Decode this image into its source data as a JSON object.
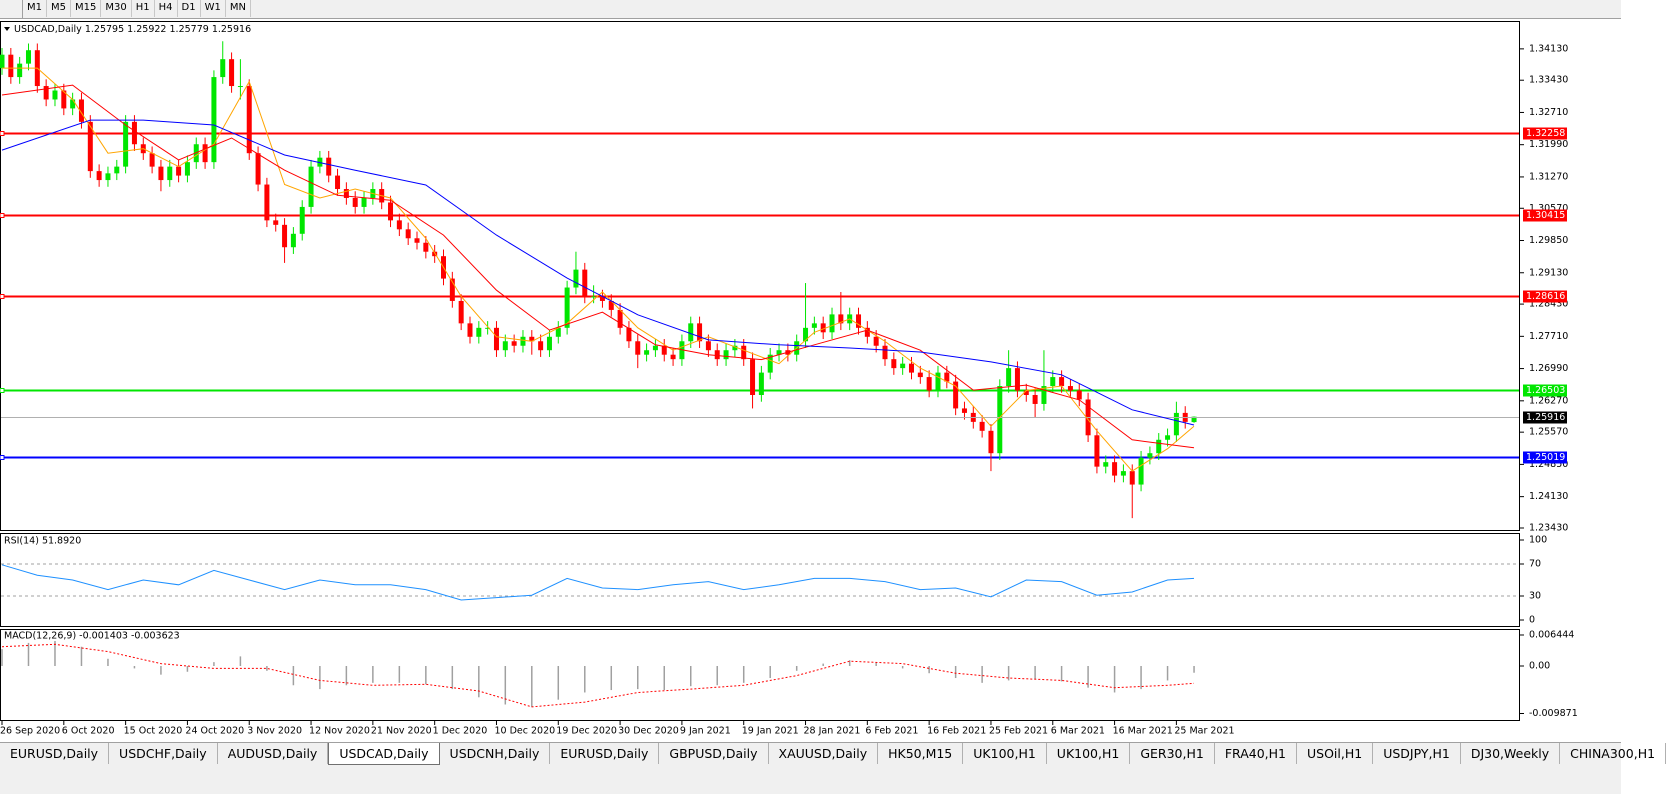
{
  "toolbar": {
    "timeframes": [
      "M1",
      "M5",
      "M15",
      "M30",
      "H1",
      "H4",
      "D1",
      "W1",
      "MN"
    ]
  },
  "tabs": {
    "items": [
      "EURUSD,Daily",
      "USDCHF,Daily",
      "AUDUSD,Daily",
      "USDCAD,Daily",
      "USDCNH,Daily",
      "EURUSD,Daily",
      "GBPUSD,Daily",
      "XAUUSD,Daily",
      "HK50,M15",
      "UK100,H1",
      "UK100,H1",
      "GER30,H1",
      "FRA40,H1",
      "USOil,H1",
      "USDJPY,H1",
      "DJ30,Weekly",
      "CHINA300,H1"
    ],
    "active": 3
  },
  "chart_data": {
    "type": "candlestick",
    "symbol": "USDCAD,Daily",
    "up_color": "#00e600",
    "down_color": "#ff0000",
    "categories": [
      "26 Sep 2020",
      null,
      null,
      null,
      null,
      null,
      null,
      "6 Oct 2020",
      null,
      null,
      null,
      null,
      null,
      null,
      "15 Oct 2020",
      null,
      null,
      null,
      null,
      null,
      null,
      "24 Oct 2020",
      null,
      null,
      null,
      null,
      null,
      null,
      "3 Nov 2020",
      null,
      null,
      null,
      null,
      null,
      null,
      "12 Nov 2020",
      null,
      null,
      null,
      null,
      null,
      null,
      "21 Nov 2020",
      null,
      null,
      null,
      null,
      null,
      null,
      "1 Dec 2020",
      null,
      null,
      null,
      null,
      null,
      null,
      "10 Dec 2020",
      null,
      null,
      null,
      null,
      null,
      null,
      "19 Dec 2020",
      null,
      null,
      null,
      null,
      null,
      null,
      "30 Dec 2020",
      null,
      null,
      null,
      null,
      null,
      null,
      "9 Jan 2021",
      null,
      null,
      null,
      null,
      null,
      null,
      "19 Jan 2021",
      null,
      null,
      null,
      null,
      null,
      null,
      "28 Jan 2021",
      null,
      null,
      null,
      null,
      null,
      null,
      "6 Feb 2021",
      null,
      null,
      null,
      null,
      null,
      null,
      "16 Feb 2021",
      null,
      null,
      null,
      null,
      null,
      null,
      "25 Feb 2021",
      null,
      null,
      null,
      null,
      null,
      null,
      "6 Mar 2021",
      null,
      null,
      null,
      null,
      null,
      null,
      "16 Mar 2021",
      null,
      null,
      null,
      null,
      null,
      null,
      "25 Mar 2021",
      null,
      null
    ],
    "open": [
      1.337,
      1.34,
      1.335,
      1.338,
      1.341,
      1.333,
      1.33,
      1.332,
      1.328,
      1.33,
      1.325,
      1.314,
      1.312,
      1.3135,
      1.315,
      1.325,
      1.32,
      1.318,
      1.315,
      1.312,
      1.315,
      1.313,
      1.316,
      1.32,
      1.316,
      1.335,
      1.339,
      1.333,
      1.333,
      1.318,
      1.311,
      1.303,
      1.302,
      1.297,
      1.3,
      1.306,
      1.315,
      1.317,
      1.313,
      1.31,
      1.308,
      1.306,
      1.308,
      1.31,
      1.307,
      1.303,
      1.301,
      1.299,
      1.298,
      1.296,
      1.295,
      1.29,
      1.285,
      1.28,
      1.277,
      1.279,
      1.279,
      1.274,
      1.276,
      1.275,
      1.277,
      1.276,
      1.274,
      1.277,
      1.279,
      1.288,
      1.292,
      1.286,
      1.286,
      1.285,
      1.283,
      1.279,
      1.276,
      1.273,
      1.274,
      1.275,
      1.273,
      1.272,
      1.276,
      1.28,
      1.276,
      1.274,
      1.272,
      1.274,
      1.275,
      1.272,
      1.264,
      1.269,
      1.273,
      1.274,
      1.273,
      1.276,
      1.279,
      1.28,
      1.278,
      1.282,
      1.28,
      1.282,
      1.279,
      1.277,
      1.275,
      1.272,
      1.27,
      1.271,
      1.269,
      1.268,
      1.265,
      1.269,
      1.267,
      1.261,
      1.26,
      1.258,
      1.256,
      1.251,
      1.266,
      1.27,
      1.265,
      1.264,
      1.262,
      1.266,
      1.268,
      1.266,
      1.265,
      1.263,
      1.255,
      1.248,
      1.249,
      1.246,
      1.247,
      1.244,
      1.25,
      1.251,
      1.254,
      1.255,
      1.26,
      1.25795
    ],
    "high": [
      1.3415,
      1.3415,
      1.3395,
      1.3425,
      1.3425,
      1.3345,
      1.3335,
      1.3335,
      1.3315,
      1.3315,
      1.3265,
      1.3155,
      1.315,
      1.3165,
      1.3265,
      1.3265,
      1.3215,
      1.3195,
      1.3165,
      1.3165,
      1.3165,
      1.3175,
      1.3215,
      1.3215,
      1.3365,
      1.343,
      1.3405,
      1.339,
      1.3345,
      1.3195,
      1.3125,
      1.3045,
      1.3035,
      1.3015,
      1.3075,
      1.3165,
      1.3185,
      1.3185,
      1.3145,
      1.3115,
      1.3095,
      1.3095,
      1.3115,
      1.3115,
      1.3085,
      1.3045,
      1.3025,
      1.3005,
      1.2995,
      1.2975,
      1.2965,
      1.2915,
      1.2865,
      1.2815,
      1.2805,
      1.2805,
      1.2805,
      1.2775,
      1.2775,
      1.2785,
      1.2785,
      1.2775,
      1.2785,
      1.2805,
      1.2895,
      1.296,
      1.2935,
      1.2885,
      1.2875,
      1.2865,
      1.2845,
      1.2805,
      1.2775,
      1.2755,
      1.2765,
      1.2765,
      1.2745,
      1.2775,
      1.2815,
      1.2815,
      1.2775,
      1.2755,
      1.2755,
      1.2765,
      1.2765,
      1.2735,
      1.2705,
      1.2745,
      1.2755,
      1.2755,
      1.2775,
      1.289,
      1.2815,
      1.2815,
      1.2835,
      1.287,
      1.2835,
      1.2835,
      1.2805,
      1.2785,
      1.2765,
      1.2735,
      1.2725,
      1.2725,
      1.2705,
      1.2695,
      1.2705,
      1.2705,
      1.2685,
      1.2625,
      1.2615,
      1.2595,
      1.2575,
      1.2675,
      1.274,
      1.2715,
      1.2665,
      1.2655,
      1.274,
      1.2695,
      1.2695,
      1.2675,
      1.2665,
      1.2645,
      1.2565,
      1.2505,
      1.2505,
      1.2485,
      1.2485,
      1.2515,
      1.2525,
      1.2555,
      1.2565,
      1.2625,
      1.2615,
      1.25922
    ],
    "low": [
      1.3355,
      1.3335,
      1.3335,
      1.3365,
      1.3315,
      1.3285,
      1.3285,
      1.3265,
      1.3265,
      1.3235,
      1.3125,
      1.3105,
      1.3105,
      1.312,
      1.3135,
      1.3185,
      1.3165,
      1.3135,
      1.3095,
      1.3105,
      1.3115,
      1.3115,
      1.3145,
      1.3145,
      1.3145,
      1.3335,
      1.3315,
      1.33,
      1.3165,
      1.3095,
      1.3015,
      1.3005,
      1.2935,
      1.2955,
      1.2985,
      1.3045,
      1.3135,
      1.3115,
      1.3085,
      1.3065,
      1.3045,
      1.3045,
      1.3065,
      1.3055,
      1.3015,
      1.2995,
      1.2975,
      1.2965,
      1.2945,
      1.2935,
      1.2885,
      1.2835,
      1.2785,
      1.2755,
      1.2755,
      1.2775,
      1.2725,
      1.2725,
      1.2735,
      1.2735,
      1.273,
      1.2725,
      1.2725,
      1.2755,
      1.2775,
      1.2865,
      1.2845,
      1.2845,
      1.2835,
      1.2815,
      1.2775,
      1.2745,
      1.27,
      1.2715,
      1.2725,
      1.2715,
      1.2705,
      1.2705,
      1.2745,
      1.2745,
      1.2725,
      1.2705,
      1.2705,
      1.2725,
      1.2705,
      1.261,
      1.2625,
      1.2675,
      1.2715,
      1.2715,
      1.2715,
      1.2745,
      1.2775,
      1.2765,
      1.2765,
      1.2785,
      1.2785,
      1.2775,
      1.2755,
      1.2735,
      1.2705,
      1.2685,
      1.2685,
      1.2675,
      1.2665,
      1.2635,
      1.2635,
      1.2655,
      1.2595,
      1.2585,
      1.2565,
      1.2545,
      1.247,
      1.2495,
      1.2645,
      1.2635,
      1.2625,
      1.259,
      1.2605,
      1.2645,
      1.2645,
      1.2635,
      1.2615,
      1.2535,
      1.2465,
      1.2465,
      1.2445,
      1.2445,
      1.2365,
      1.2425,
      1.2485,
      1.2495,
      1.2525,
      1.2535,
      1.2565,
      1.25779
    ],
    "close": [
      1.34,
      1.335,
      1.338,
      1.341,
      1.333,
      1.33,
      1.332,
      1.328,
      1.33,
      1.325,
      1.314,
      1.312,
      1.3135,
      1.315,
      1.325,
      1.32,
      1.318,
      1.315,
      1.312,
      1.315,
      1.313,
      1.316,
      1.32,
      1.316,
      1.335,
      1.339,
      1.333,
      1.333,
      1.318,
      1.311,
      1.303,
      1.302,
      1.297,
      1.3,
      1.306,
      1.315,
      1.317,
      1.313,
      1.31,
      1.308,
      1.306,
      1.308,
      1.31,
      1.307,
      1.303,
      1.301,
      1.299,
      1.298,
      1.296,
      1.295,
      1.29,
      1.285,
      1.28,
      1.277,
      1.279,
      1.279,
      1.274,
      1.276,
      1.275,
      1.277,
      1.276,
      1.274,
      1.277,
      1.279,
      1.288,
      1.292,
      1.286,
      1.286,
      1.285,
      1.283,
      1.279,
      1.276,
      1.273,
      1.274,
      1.275,
      1.273,
      1.272,
      1.276,
      1.28,
      1.276,
      1.274,
      1.272,
      1.274,
      1.275,
      1.272,
      1.264,
      1.269,
      1.273,
      1.274,
      1.273,
      1.276,
      1.279,
      1.28,
      1.278,
      1.282,
      1.28,
      1.282,
      1.279,
      1.277,
      1.275,
      1.272,
      1.27,
      1.271,
      1.269,
      1.268,
      1.265,
      1.269,
      1.267,
      1.261,
      1.26,
      1.258,
      1.256,
      1.251,
      1.266,
      1.27,
      1.265,
      1.264,
      1.262,
      1.266,
      1.268,
      1.266,
      1.265,
      1.263,
      1.255,
      1.248,
      1.249,
      1.246,
      1.247,
      1.244,
      1.25,
      1.251,
      1.254,
      1.255,
      1.26,
      1.258,
      1.25916
    ],
    "ylim": [
      1.23385,
      1.3473
    ],
    "yticks": [
      {
        "value": 1.3413,
        "label": "1.34130"
      },
      {
        "value": 1.3343,
        "label": "1.33430"
      },
      {
        "value": 1.3271,
        "label": "1.32710"
      },
      {
        "value": 1.3199,
        "label": "1.31990"
      },
      {
        "value": 1.3127,
        "label": "1.31270"
      },
      {
        "value": 1.3057,
        "label": "1.30570"
      },
      {
        "value": 1.2985,
        "label": "1.29850"
      },
      {
        "value": 1.2913,
        "label": "1.29130"
      },
      {
        "value": 1.2843,
        "label": "1.28430"
      },
      {
        "value": 1.2771,
        "label": "1.27710"
      },
      {
        "value": 1.2699,
        "label": "1.26990"
      },
      {
        "value": 1.2627,
        "label": "1.26270"
      },
      {
        "value": 1.2557,
        "label": "1.25570"
      },
      {
        "value": 1.2485,
        "label": "1.24850"
      },
      {
        "value": 1.2413,
        "label": "1.24130"
      },
      {
        "value": 1.2343,
        "label": "1.23430"
      }
    ],
    "levels": [
      {
        "value": 1.32258,
        "color": "#ff0000"
      },
      {
        "value": 1.30415,
        "color": "#ff0000"
      },
      {
        "value": 1.28616,
        "color": "#ff0000"
      },
      {
        "value": 1.26503,
        "color": "#00e600"
      },
      {
        "value": 1.25019,
        "color": "#0000ff"
      }
    ],
    "moving_averages": [
      {
        "color": "#ffa500",
        "x": [
          0,
          4,
          8,
          12,
          16,
          20,
          24,
          28,
          32,
          36,
          40,
          44,
          48,
          52,
          56,
          60,
          64,
          68,
          72,
          76,
          80,
          84,
          88,
          92,
          96,
          100,
          104,
          108,
          112,
          116,
          120,
          124,
          128,
          132,
          135
        ],
        "values": [
          1.337,
          1.337,
          1.33,
          1.318,
          1.319,
          1.315,
          1.32,
          1.334,
          1.311,
          1.308,
          1.31,
          1.308,
          1.299,
          1.286,
          1.277,
          1.276,
          1.28,
          1.287,
          1.279,
          1.274,
          1.277,
          1.274,
          1.271,
          1.278,
          1.281,
          1.276,
          1.27,
          1.266,
          1.257,
          1.265,
          1.266,
          1.256,
          1.247,
          1.252,
          1.257
        ]
      },
      {
        "color": "#ff0000",
        "x": [
          0,
          8,
          14,
          20,
          26,
          32,
          38,
          44,
          50,
          56,
          62,
          68,
          74,
          80,
          86,
          92,
          98,
          104,
          110,
          116,
          122,
          128,
          135
        ],
        "values": [
          1.331,
          1.3332,
          1.3243,
          1.3165,
          1.3214,
          1.3142,
          1.3086,
          1.3075,
          1.2997,
          1.2874,
          1.2785,
          1.2825,
          1.2752,
          1.273,
          1.2719,
          1.2752,
          1.2785,
          1.274,
          1.2651,
          1.2662,
          1.2629,
          1.254,
          1.2522
        ]
      },
      {
        "color": "#0000ff",
        "x": [
          0,
          10,
          16,
          24,
          32,
          40,
          48,
          56,
          64,
          72,
          80,
          88,
          96,
          104,
          112,
          120,
          128,
          135
        ],
        "values": [
          1.3187,
          1.3254,
          1.3254,
          1.3243,
          1.3176,
          1.3142,
          1.3109,
          1.2997,
          1.2901,
          1.2819,
          1.2763,
          1.2752,
          1.2745,
          1.2736,
          1.2714,
          1.2685,
          1.2607,
          1.2573
        ]
      }
    ],
    "rsi": {
      "label": "RSI(14) 51.8920",
      "color": "#1e90ff",
      "ylim": [
        0,
        100
      ],
      "yticks": [
        100,
        70,
        30,
        0
      ],
      "levels": [
        70,
        30
      ],
      "x": [
        0,
        4,
        8,
        12,
        16,
        20,
        24,
        28,
        32,
        36,
        40,
        44,
        48,
        52,
        56,
        60,
        64,
        68,
        72,
        76,
        80,
        84,
        88,
        92,
        96,
        100,
        104,
        108,
        112,
        116,
        120,
        124,
        128,
        132,
        135
      ],
      "values": [
        69,
        56,
        50,
        38,
        50,
        44,
        62,
        50,
        38,
        50,
        44,
        44,
        38,
        25,
        28,
        31,
        52,
        40,
        38,
        44,
        48,
        38,
        44,
        52,
        52,
        48,
        38,
        40,
        29,
        50,
        48,
        31,
        35,
        50,
        52
      ]
    },
    "macd": {
      "label": "MACD(12,26,9) -0.001403 -0.003623",
      "hist_color": "#a0a0a0",
      "signal_color": "#ff0000",
      "ylim": [
        -0.01122,
        0.00748
      ],
      "yticks": [
        0.006444,
        {
          "value": 0,
          "label": "0.00"
        },
        -0.009871
      ],
      "x": [
        0,
        3,
        6,
        9,
        12,
        15,
        18,
        21,
        24,
        27,
        30,
        33,
        36,
        39,
        42,
        45,
        48,
        51,
        54,
        57,
        60,
        63,
        66,
        69,
        72,
        75,
        78,
        81,
        84,
        87,
        90,
        93,
        96,
        99,
        102,
        105,
        108,
        111,
        114,
        117,
        120,
        123,
        126,
        129,
        132,
        135
      ],
      "values": [
        0.0035,
        0.0048,
        0.0052,
        0.004,
        0.0015,
        -0.0005,
        -0.0018,
        -0.0012,
        0.0008,
        0.002,
        -0.001,
        -0.004,
        -0.0048,
        -0.004,
        -0.0035,
        -0.0035,
        -0.0038,
        -0.0048,
        -0.0065,
        -0.008,
        -0.0085,
        -0.007,
        -0.0055,
        -0.005,
        -0.0048,
        -0.005,
        -0.0042,
        -0.004,
        -0.0035,
        -0.0025,
        -0.001,
        0.0005,
        0.0012,
        0.0008,
        -0.0005,
        -0.0015,
        -0.0025,
        -0.0035,
        -0.003,
        -0.0028,
        -0.0032,
        -0.0045,
        -0.0055,
        -0.0048,
        -0.003,
        -0.0014
      ],
      "signal_x": [
        0,
        6,
        12,
        18,
        24,
        30,
        36,
        42,
        48,
        54,
        60,
        66,
        72,
        78,
        84,
        90,
        96,
        102,
        108,
        114,
        120,
        126,
        132,
        135
      ],
      "signal": [
        0.004,
        0.0045,
        0.003,
        0.0005,
        -0.0005,
        -0.0005,
        -0.003,
        -0.004,
        -0.0038,
        -0.0052,
        -0.0085,
        -0.0075,
        -0.0055,
        -0.0048,
        -0.004,
        -0.002,
        0.001,
        0.0005,
        -0.0015,
        -0.0025,
        -0.003,
        -0.0045,
        -0.004,
        -0.0036
      ]
    }
  }
}
